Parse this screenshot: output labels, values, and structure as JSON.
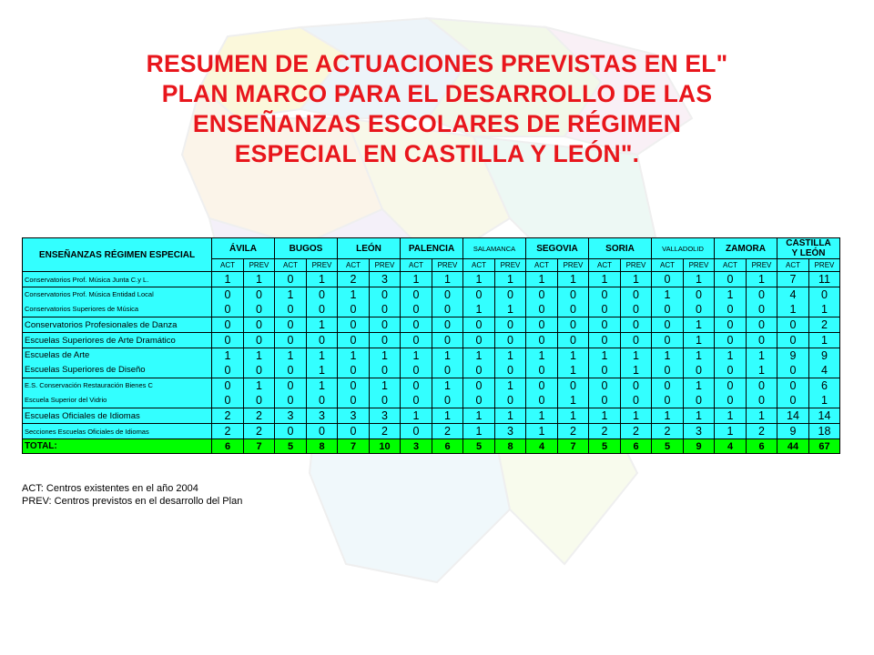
{
  "title_lines": [
    "RESUMEN DE ACTUACIONES PREVISTAS EN EL\"",
    "PLAN MARCO PARA EL DESARROLLO DE LAS",
    "ENSEÑANZAS ESCOLARES DE RÉGIMEN",
    "ESPECIAL EN CASTILLA Y LEÓN\"."
  ],
  "table": {
    "corner_label": "ENSEÑANZAS RÉGIMEN ESPECIAL",
    "provinces": [
      "ÁVILA",
      "BUGOS",
      "LEÓN",
      "PALENCIA",
      "SALAMANCA",
      "SEGOVIA",
      "SORIA",
      "VALLADOLID",
      "ZAMORA"
    ],
    "total_header": [
      "CASTILLA",
      "Y LEÓN"
    ],
    "sub_act": "ACT",
    "sub_prev": "PREV",
    "rows": [
      {
        "labels": [
          "Conservatorios Prof. Música Junta C.y L."
        ],
        "values": [
          [
            "1",
            "1",
            "0",
            "1",
            "2",
            "3",
            "1",
            "1",
            "1",
            "1",
            "1",
            "1",
            "1",
            "1",
            "0",
            "1",
            "0",
            "1",
            "7",
            "11"
          ]
        ]
      },
      {
        "labels": [
          "Conservatorios Prof. Música Entidad Local",
          "Conservatorios Superiores de Música"
        ],
        "values": [
          [
            "0",
            "0",
            "1",
            "0",
            "1",
            "0",
            "0",
            "0",
            "0",
            "0",
            "0",
            "0",
            "0",
            "0",
            "1",
            "0",
            "1",
            "0",
            "4",
            "0"
          ],
          [
            "0",
            "0",
            "0",
            "0",
            "0",
            "0",
            "0",
            "0",
            "1",
            "1",
            "0",
            "0",
            "0",
            "0",
            "0",
            "0",
            "0",
            "0",
            "1",
            "1"
          ]
        ]
      },
      {
        "labels": [
          "Conservatorios Profesionales de Danza"
        ],
        "values": [
          [
            "0",
            "0",
            "0",
            "1",
            "0",
            "0",
            "0",
            "0",
            "0",
            "0",
            "0",
            "0",
            "0",
            "0",
            "0",
            "1",
            "0",
            "0",
            "0",
            "2"
          ]
        ]
      },
      {
        "labels": [
          "Escuelas Superiores de Arte Dramático"
        ],
        "values": [
          [
            "0",
            "0",
            "0",
            "0",
            "0",
            "0",
            "0",
            "0",
            "0",
            "0",
            "0",
            "0",
            "0",
            "0",
            "0",
            "1",
            "0",
            "0",
            "0",
            "1"
          ]
        ]
      },
      {
        "labels": [
          "Escuelas de Arte",
          "Escuelas Superiores de Diseño"
        ],
        "values": [
          [
            "1",
            "1",
            "1",
            "1",
            "1",
            "1",
            "1",
            "1",
            "1",
            "1",
            "1",
            "1",
            "1",
            "1",
            "1",
            "1",
            "1",
            "1",
            "9",
            "9"
          ],
          [
            "0",
            "0",
            "0",
            "1",
            "0",
            "0",
            "0",
            "0",
            "0",
            "0",
            "0",
            "1",
            "0",
            "1",
            "0",
            "0",
            "0",
            "1",
            "0",
            "4"
          ]
        ]
      },
      {
        "labels": [
          "E.S. Conservación Restauración Bienes C",
          "Escuela Superior del Vidrio"
        ],
        "values": [
          [
            "0",
            "1",
            "0",
            "1",
            "0",
            "1",
            "0",
            "1",
            "0",
            "1",
            "0",
            "0",
            "0",
            "0",
            "0",
            "1",
            "0",
            "0",
            "0",
            "6"
          ],
          [
            "0",
            "0",
            "0",
            "0",
            "0",
            "0",
            "0",
            "0",
            "0",
            "0",
            "0",
            "1",
            "0",
            "0",
            "0",
            "0",
            "0",
            "0",
            "0",
            "1"
          ]
        ]
      },
      {
        "labels": [
          "Escuelas Oficiales de Idiomas"
        ],
        "values": [
          [
            "2",
            "2",
            "3",
            "3",
            "3",
            "3",
            "1",
            "1",
            "1",
            "1",
            "1",
            "1",
            "1",
            "1",
            "1",
            "1",
            "1",
            "1",
            "14",
            "14"
          ]
        ]
      },
      {
        "labels": [
          "Secciones Escuelas Oficiales de Idiomas"
        ],
        "values": [
          [
            "2",
            "2",
            "0",
            "0",
            "0",
            "2",
            "0",
            "2",
            "1",
            "3",
            "1",
            "2",
            "2",
            "2",
            "2",
            "3",
            "1",
            "2",
            "9",
            "18"
          ]
        ]
      }
    ],
    "total": {
      "label": "TOTAL:",
      "values": [
        "6",
        "7",
        "5",
        "8",
        "7",
        "10",
        "3",
        "6",
        "5",
        "8",
        "4",
        "7",
        "5",
        "6",
        "5",
        "9",
        "4",
        "6",
        "44",
        "67"
      ]
    }
  },
  "legend": [
    "ACT: Centros existentes en el año 2004",
    "PREV: Centros previstos en el desarrollo del Plan"
  ]
}
